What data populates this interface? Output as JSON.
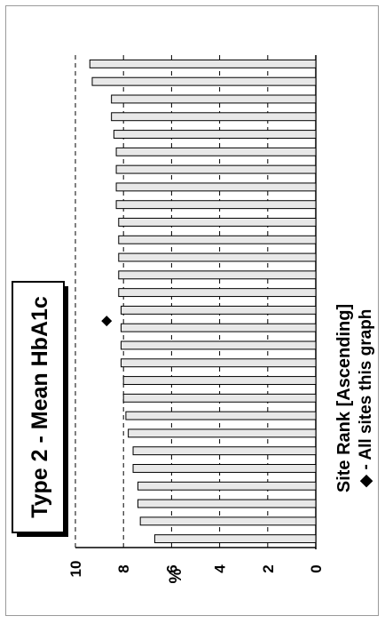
{
  "chart_data": {
    "type": "bar",
    "title": "Type 2 - Mean HbA1c",
    "xlabel": "Site Rank [Ascending]",
    "ylabel": "%",
    "ylim": [
      0,
      10
    ],
    "yticks": [
      "0",
      "2",
      "4",
      "6",
      "8",
      "10"
    ],
    "grid": true,
    "legend": "◆ - All sites this graph",
    "reference_value": 8.7,
    "values": [
      6.7,
      7.3,
      7.4,
      7.4,
      7.6,
      7.6,
      7.8,
      7.9,
      8.0,
      8.0,
      8.1,
      8.1,
      8.1,
      8.1,
      8.2,
      8.2,
      8.2,
      8.2,
      8.2,
      8.3,
      8.3,
      8.3,
      8.3,
      8.4,
      8.5,
      8.5,
      9.3,
      9.4
    ],
    "bar_fill": "#e8e8e8",
    "bar_stroke": "#000000"
  }
}
